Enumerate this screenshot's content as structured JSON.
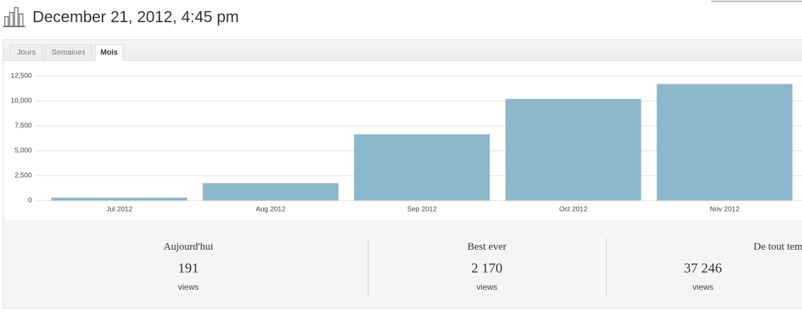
{
  "header": {
    "title": "December 21, 2012, 4:45 pm"
  },
  "tabs": [
    "Jours",
    "Semaines",
    "Mois"
  ],
  "chart_data": {
    "type": "bar",
    "categories": [
      "Jul 2012",
      "Aug 2012",
      "Sep 2012",
      "Oct 2012",
      "Nov 2012"
    ],
    "values": [
      300,
      1750,
      6650,
      10200,
      11700
    ],
    "color": "#8db8cb",
    "ylim": [
      0,
      12500
    ],
    "yticks": [
      0,
      {
        "value": 2500,
        "label": "2,500"
      },
      {
        "value": 5000,
        "label": "5,000"
      },
      {
        "value": 7500,
        "label": "7,500"
      },
      {
        "value": 10000,
        "label": "10,000"
      },
      {
        "value": 12500,
        "label": "12,500"
      }
    ],
    "grid": true
  },
  "stats": [
    {
      "label": "Aujourd'hui",
      "value": "191",
      "unit": "views"
    },
    {
      "label": "Best ever",
      "value": "2 170",
      "unit": "views"
    },
    {
      "label": "De tout temps",
      "value": "37 246",
      "unit": "views"
    }
  ]
}
